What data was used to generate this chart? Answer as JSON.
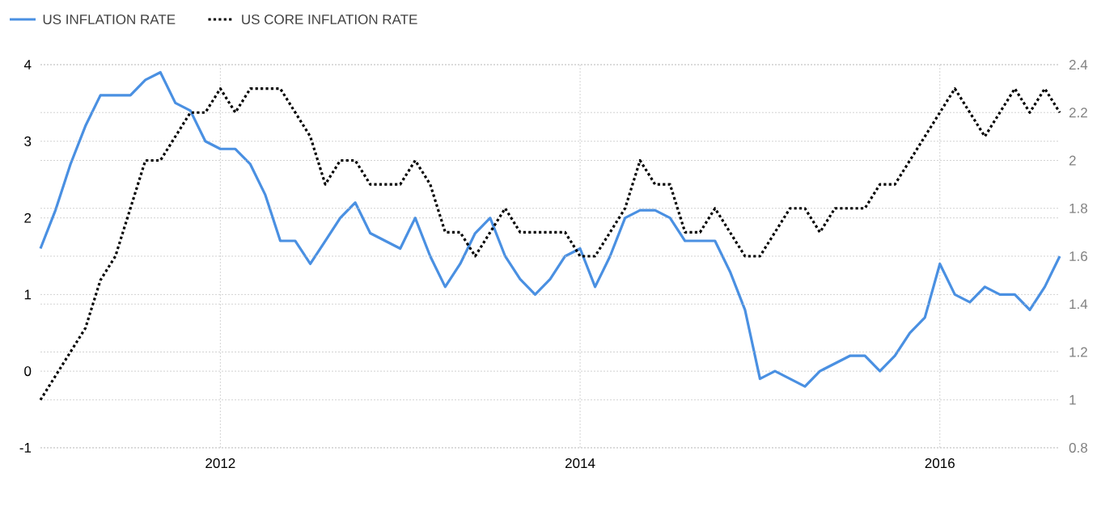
{
  "chart_data": {
    "type": "line",
    "x": [
      "2011-01",
      "2011-02",
      "2011-03",
      "2011-04",
      "2011-05",
      "2011-06",
      "2011-07",
      "2011-08",
      "2011-09",
      "2011-10",
      "2011-11",
      "2011-12",
      "2012-01",
      "2012-02",
      "2012-03",
      "2012-04",
      "2012-05",
      "2012-06",
      "2012-07",
      "2012-08",
      "2012-09",
      "2012-10",
      "2012-11",
      "2012-12",
      "2013-01",
      "2013-02",
      "2013-03",
      "2013-04",
      "2013-05",
      "2013-06",
      "2013-07",
      "2013-08",
      "2013-09",
      "2013-10",
      "2013-11",
      "2013-12",
      "2014-01",
      "2014-02",
      "2014-03",
      "2014-04",
      "2014-05",
      "2014-06",
      "2014-07",
      "2014-08",
      "2014-09",
      "2014-10",
      "2014-11",
      "2014-12",
      "2015-01",
      "2015-02",
      "2015-03",
      "2015-04",
      "2015-05",
      "2015-06",
      "2015-07",
      "2015-08",
      "2015-09",
      "2015-10",
      "2015-11",
      "2015-12",
      "2016-01",
      "2016-02",
      "2016-03",
      "2016-04",
      "2016-05",
      "2016-06",
      "2016-07",
      "2016-08",
      "2016-09"
    ],
    "series": [
      {
        "name": "US INFLATION RATE",
        "color": "#4a90e2",
        "line_style": "solid",
        "values": [
          1.6,
          2.1,
          2.7,
          3.2,
          3.6,
          3.6,
          3.6,
          3.8,
          3.9,
          3.5,
          3.4,
          3.0,
          2.9,
          2.9,
          2.7,
          2.3,
          1.7,
          1.7,
          1.4,
          1.7,
          2.0,
          2.2,
          1.8,
          1.7,
          1.6,
          2.0,
          1.5,
          1.1,
          1.4,
          1.8,
          2.0,
          1.5,
          1.2,
          1.0,
          1.2,
          1.5,
          1.6,
          1.1,
          1.5,
          2.0,
          2.1,
          2.1,
          2.0,
          1.7,
          1.7,
          1.7,
          1.3,
          0.8,
          -0.1,
          0.0,
          -0.1,
          -0.2,
          0.0,
          0.1,
          0.2,
          0.2,
          0.0,
          0.2,
          0.5,
          0.7,
          1.4,
          1.0,
          0.9,
          1.1,
          1.0,
          1.0,
          0.8,
          1.1,
          1.5
        ]
      },
      {
        "name": "US CORE INFLATION RATE",
        "color": "#000000",
        "line_style": "dotted",
        "axis": "y2",
        "values": [
          1.0,
          1.1,
          1.2,
          1.3,
          1.5,
          1.6,
          1.8,
          2.0,
          2.0,
          2.1,
          2.2,
          2.2,
          2.3,
          2.2,
          2.3,
          2.3,
          2.3,
          2.2,
          2.1,
          1.9,
          2.0,
          2.0,
          1.9,
          1.9,
          1.9,
          2.0,
          1.9,
          1.7,
          1.7,
          1.6,
          1.7,
          1.8,
          1.7,
          1.7,
          1.7,
          1.7,
          1.6,
          1.6,
          1.7,
          1.8,
          2.0,
          1.9,
          1.9,
          1.7,
          1.7,
          1.8,
          1.7,
          1.6,
          1.6,
          1.7,
          1.8,
          1.8,
          1.7,
          1.8,
          1.8,
          1.8,
          1.9,
          1.9,
          2.0,
          2.1,
          2.2,
          2.3,
          2.2,
          2.1,
          2.2,
          2.3,
          2.2,
          2.3,
          2.2
        ]
      }
    ],
    "xlim": [
      "2011-01",
      "2016-09"
    ],
    "xticks": [
      "2012",
      "2014",
      "2016"
    ],
    "ylim": [
      -1,
      4
    ],
    "yticks": [
      -1,
      0,
      1,
      2,
      3,
      4
    ],
    "y2lim": [
      0.8,
      2.4
    ],
    "y2ticks": [
      0.8,
      1,
      1.2,
      1.4,
      1.6,
      1.8,
      2,
      2.2,
      2.4
    ],
    "grid": true,
    "legend": "top left",
    "marker": "none"
  }
}
